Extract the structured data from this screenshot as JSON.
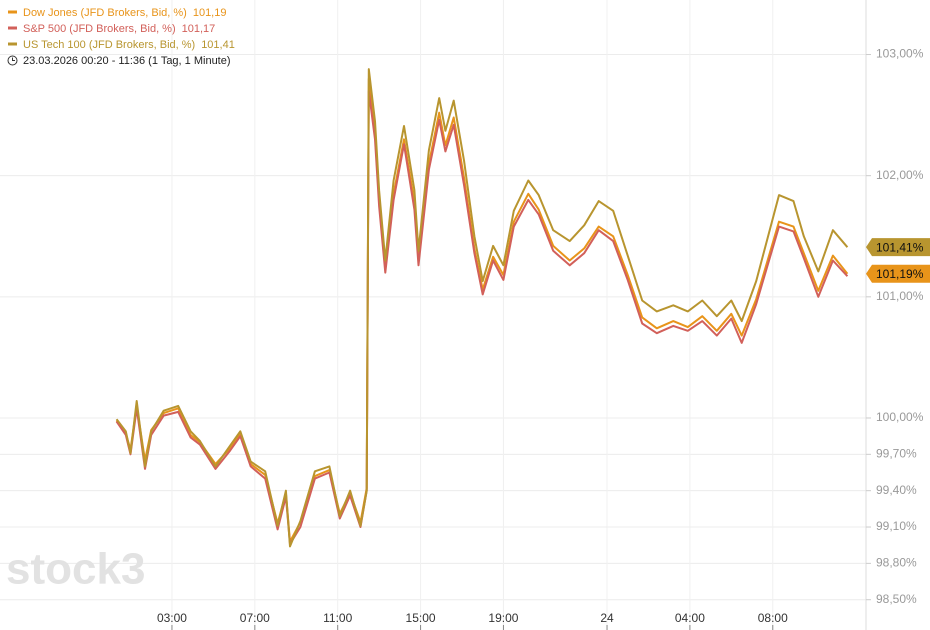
{
  "chart_data": {
    "type": "line",
    "subtitle": "23.03.2026 00:20 - 11:36  (1 Tag, 1 Minute)",
    "watermark": "stock3",
    "xlim": [
      -5.3,
      36.5
    ],
    "xticks": [
      {
        "value": 3,
        "label": "03:00"
      },
      {
        "value": 7,
        "label": "07:00"
      },
      {
        "value": 11,
        "label": "11:00"
      },
      {
        "value": 15,
        "label": "15:00"
      },
      {
        "value": 19,
        "label": "19:00"
      },
      {
        "value": 24,
        "label": "24"
      },
      {
        "value": 28,
        "label": "04:00"
      },
      {
        "value": 32,
        "label": "08:00"
      }
    ],
    "ylim": [
      98.25,
      103.45
    ],
    "yticks": [
      {
        "value": 98.5,
        "label": "98,50%"
      },
      {
        "value": 98.8,
        "label": "98,80%"
      },
      {
        "value": 99.1,
        "label": "99,10%"
      },
      {
        "value": 99.4,
        "label": "99,40%"
      },
      {
        "value": 99.7,
        "label": "99,70%"
      },
      {
        "value": 100,
        "label": "100,00%"
      },
      {
        "value": 101,
        "label": "101,00%"
      },
      {
        "value": 102,
        "label": "102,00%"
      },
      {
        "value": 103,
        "label": "103,00%"
      }
    ],
    "grid": true,
    "x": [
      0.33,
      0.77,
      1.0,
      1.3,
      1.7,
      2.0,
      2.6,
      3.3,
      3.9,
      4.35,
      5.1,
      5.8,
      6.3,
      6.8,
      7.5,
      8.1,
      8.5,
      8.7,
      9.2,
      9.9,
      10.6,
      11.1,
      11.6,
      12.1,
      12.4,
      12.5,
      12.8,
      13.0,
      13.3,
      13.7,
      14.2,
      14.7,
      14.9,
      15.4,
      15.9,
      16.2,
      16.6,
      17.1,
      17.6,
      18.0,
      18.5,
      19.0,
      19.5,
      20.2,
      20.7,
      21.4,
      22.2,
      22.9,
      23.6,
      24.3,
      25.0,
      25.7,
      26.4,
      27.2,
      27.9,
      28.6,
      29.3,
      30.0,
      30.5,
      31.2,
      32.3,
      33.0,
      33.5,
      34.2,
      34.9,
      35.6
    ],
    "series": [
      {
        "name": "Dow Jones (JFD Brokers, Bid, %)",
        "legend_value": "101,19",
        "tag_label": "101,19%",
        "color": "#e8941a",
        "values": [
          99.98,
          99.87,
          99.74,
          100.1,
          99.65,
          99.9,
          100.04,
          100.08,
          99.86,
          99.8,
          99.62,
          99.75,
          99.87,
          99.62,
          99.53,
          99.13,
          99.38,
          98.98,
          99.14,
          99.52,
          99.57,
          99.21,
          99.38,
          99.14,
          99.42,
          102.8,
          102.35,
          101.8,
          101.25,
          101.85,
          102.3,
          101.78,
          101.3,
          102.1,
          102.52,
          102.25,
          102.48,
          101.98,
          101.4,
          101.06,
          101.33,
          101.18,
          101.62,
          101.85,
          101.72,
          101.42,
          101.3,
          101.4,
          101.58,
          101.5,
          101.18,
          100.83,
          100.74,
          100.8,
          100.75,
          100.84,
          100.72,
          100.86,
          100.68,
          100.98,
          101.62,
          101.58,
          101.36,
          101.05,
          101.34,
          101.19
        ]
      },
      {
        "name": "S&P 500 (JFD Brokers, Bid, %)",
        "legend_value": "101,17",
        "color": "#d2605a",
        "values": [
          99.97,
          99.86,
          99.7,
          100.08,
          99.58,
          99.86,
          100.02,
          100.05,
          99.84,
          99.78,
          99.58,
          99.73,
          99.85,
          99.6,
          99.5,
          99.08,
          99.35,
          98.96,
          99.1,
          99.5,
          99.55,
          99.17,
          99.36,
          99.1,
          99.4,
          102.7,
          102.3,
          101.75,
          101.2,
          101.8,
          102.26,
          101.72,
          101.26,
          102.05,
          102.46,
          102.2,
          102.42,
          101.92,
          101.36,
          101.02,
          101.3,
          101.14,
          101.58,
          101.8,
          101.68,
          101.38,
          101.26,
          101.36,
          101.55,
          101.46,
          101.14,
          100.78,
          100.7,
          100.76,
          100.72,
          100.8,
          100.68,
          100.82,
          100.62,
          100.94,
          101.58,
          101.54,
          101.32,
          101.0,
          101.3,
          101.17
        ]
      },
      {
        "name": "US Tech 100 (JFD Brokers, Bid, %)",
        "legend_value": "101,41",
        "tag_label": "101,41%",
        "color": "#b8952f",
        "values": [
          99.99,
          99.89,
          99.71,
          100.14,
          99.6,
          99.89,
          100.06,
          100.1,
          99.89,
          99.81,
          99.6,
          99.77,
          99.89,
          99.64,
          99.56,
          99.11,
          99.4,
          98.94,
          99.15,
          99.56,
          99.6,
          99.19,
          99.4,
          99.11,
          99.4,
          102.88,
          102.45,
          101.88,
          101.3,
          101.96,
          102.41,
          101.88,
          101.38,
          102.21,
          102.64,
          102.37,
          102.62,
          102.12,
          101.5,
          101.13,
          101.42,
          101.26,
          101.71,
          101.96,
          101.84,
          101.55,
          101.46,
          101.59,
          101.79,
          101.71,
          101.34,
          100.97,
          100.88,
          100.93,
          100.88,
          100.97,
          100.84,
          100.97,
          100.8,
          101.13,
          101.84,
          101.79,
          101.5,
          101.21,
          101.55,
          101.41
        ]
      }
    ]
  }
}
